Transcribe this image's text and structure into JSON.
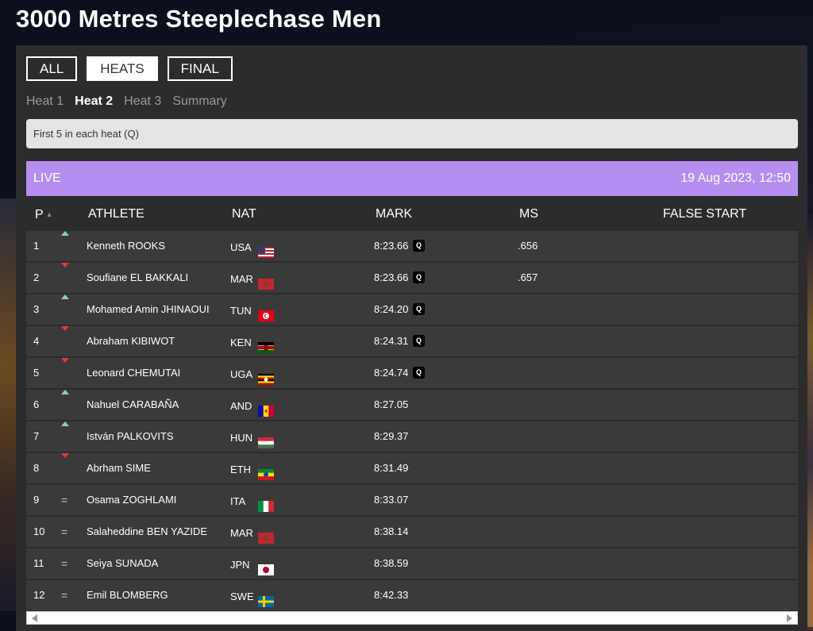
{
  "page_title": "3000 Metres Steeplechase Men",
  "tabs": [
    {
      "label": "ALL",
      "active": false
    },
    {
      "label": "HEATS",
      "active": true
    },
    {
      "label": "FINAL",
      "active": false
    }
  ],
  "heats": [
    {
      "label": "Heat 1",
      "active": false
    },
    {
      "label": "Heat 2",
      "active": true
    },
    {
      "label": "Heat 3",
      "active": false
    },
    {
      "label": "Summary",
      "active": false
    }
  ],
  "notice": "First 5 in each heat (Q)",
  "live": {
    "label": "LIVE",
    "datetime": "19 Aug 2023, 12:50",
    "color": "#b68ef0"
  },
  "columns": {
    "p": "P",
    "athlete": "ATHLETE",
    "nat": "NAT",
    "mark": "MARK",
    "ms": "MS",
    "false_start": "FALSE START"
  },
  "colors": {
    "up": "#7fd6c0",
    "down": "#e23a3a"
  },
  "results": [
    {
      "pos": "1",
      "trend": "up",
      "name": "Kenneth ROOKS",
      "nat": "USA",
      "flag": "usa",
      "mark": "8:23.66",
      "q": "Q",
      "ms": ".656"
    },
    {
      "pos": "2",
      "trend": "down",
      "name": "Soufiane EL BAKKALI",
      "nat": "MAR",
      "flag": "mar",
      "mark": "8:23.66",
      "q": "Q",
      "ms": ".657"
    },
    {
      "pos": "3",
      "trend": "up",
      "name": "Mohamed Amin JHINAOUI",
      "nat": "TUN",
      "flag": "tun",
      "mark": "8:24.20",
      "q": "Q",
      "ms": ""
    },
    {
      "pos": "4",
      "trend": "down",
      "name": "Abraham KIBIWOT",
      "nat": "KEN",
      "flag": "ken",
      "mark": "8:24.31",
      "q": "Q",
      "ms": ""
    },
    {
      "pos": "5",
      "trend": "down",
      "name": "Leonard CHEMUTAI",
      "nat": "UGA",
      "flag": "uga",
      "mark": "8:24.74",
      "q": "Q",
      "ms": ""
    },
    {
      "pos": "6",
      "trend": "up",
      "name": "Nahuel CARABAÑA",
      "nat": "AND",
      "flag": "and",
      "mark": "8:27.05",
      "q": "",
      "ms": ""
    },
    {
      "pos": "7",
      "trend": "up",
      "name": "István PALKOVITS",
      "nat": "HUN",
      "flag": "hun",
      "mark": "8:29.37",
      "q": "",
      "ms": ""
    },
    {
      "pos": "8",
      "trend": "down",
      "name": "Abrham SIME",
      "nat": "ETH",
      "flag": "eth",
      "mark": "8:31.49",
      "q": "",
      "ms": ""
    },
    {
      "pos": "9",
      "trend": "same",
      "name": "Osama ZOGHLAMI",
      "nat": "ITA",
      "flag": "ita",
      "mark": "8:33.07",
      "q": "",
      "ms": ""
    },
    {
      "pos": "10",
      "trend": "same",
      "name": "Salaheddine BEN YAZIDE",
      "nat": "MAR",
      "flag": "mar",
      "mark": "8:38.14",
      "q": "",
      "ms": ""
    },
    {
      "pos": "11",
      "trend": "same",
      "name": "Seiya SUNADA",
      "nat": "JPN",
      "flag": "jpn",
      "mark": "8:38.59",
      "q": "",
      "ms": ""
    },
    {
      "pos": "12",
      "trend": "same",
      "name": "Emil BLOMBERG",
      "nat": "SWE",
      "flag": "swe",
      "mark": "8:42.33",
      "q": "",
      "ms": ""
    }
  ]
}
